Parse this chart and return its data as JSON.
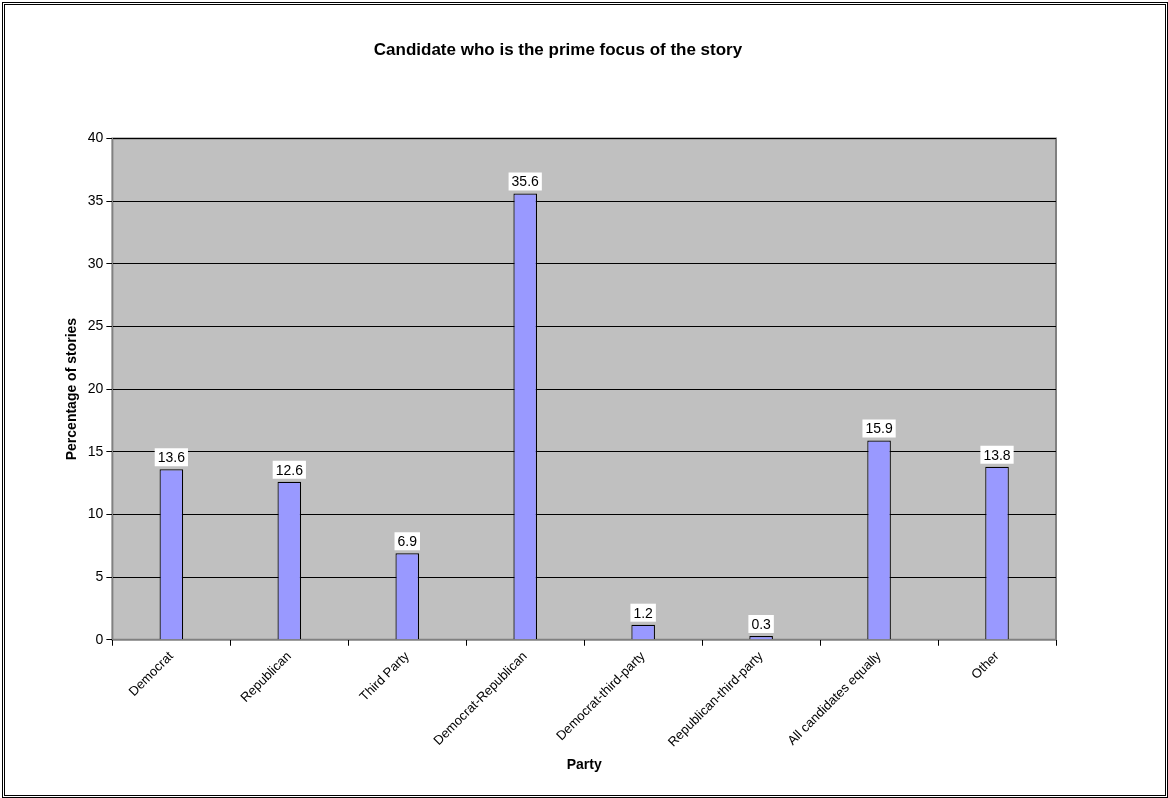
{
  "chart_data": {
    "type": "bar",
    "title": "Candidate who is the prime focus of the story",
    "xlabel": "Party",
    "ylabel": "Percentage of stories",
    "categories": [
      "Democrat",
      "Republican",
      "Third Party",
      "Democrat-Republican",
      "Democrat-third-party",
      "Republican-third-party",
      "All candidates equally",
      "Other"
    ],
    "values": [
      13.6,
      12.6,
      6.9,
      35.6,
      1.2,
      0.3,
      15.9,
      13.8
    ],
    "color": "#9999ff",
    "ylim": [
      0,
      40
    ],
    "yticks": [
      0,
      5,
      10,
      15,
      20,
      25,
      30,
      35,
      40
    ],
    "grid": "y",
    "legend": false,
    "data_labels": true
  }
}
